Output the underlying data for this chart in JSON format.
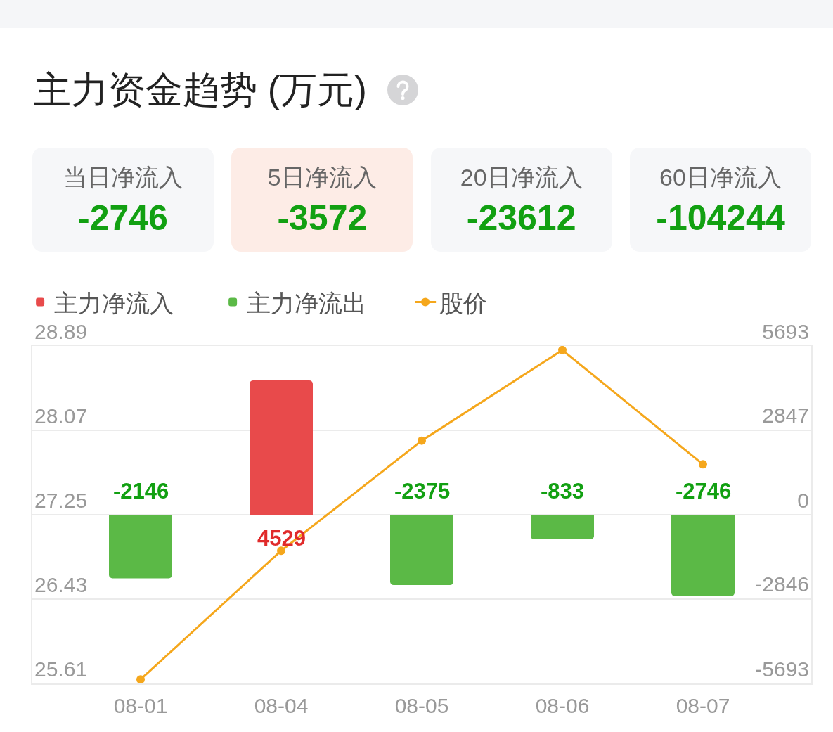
{
  "chart_data": [
    {
      "type": "other",
      "title": "主力资金趋势 (万元)",
      "categories": [
        "当日净流入",
        "5日净流入",
        "20日净流入",
        "60日净流入"
      ],
      "values": [
        -2746,
        -3572,
        -23612,
        -104244
      ],
      "colors": [
        "#f6f7f9",
        "#fdece6",
        "#f6f7f9",
        "#f6f7f9"
      ],
      "data_labels": true
    },
    {
      "type": "bar",
      "categories": [
        "08-01",
        "08-04",
        "08-05",
        "08-06",
        "08-07"
      ],
      "series": [
        {
          "name": "主力净流入",
          "type": "bar",
          "axis": "y2",
          "color": "#e84a4b",
          "values": [
            null,
            4529,
            null,
            null,
            null
          ],
          "value_labels": [
            null,
            "4529",
            null,
            null,
            null
          ]
        },
        {
          "name": "主力净流出",
          "type": "bar",
          "axis": "y2",
          "color": "#5bb946",
          "values": [
            -2146,
            null,
            -2375,
            -833,
            -2746
          ],
          "value_labels": [
            "-2146",
            null,
            "-2375",
            "-833",
            "-2746"
          ]
        },
        {
          "name": "股价",
          "type": "line",
          "color": "#f5a71c",
          "values": [
            25.65,
            26.9,
            27.97,
            28.85,
            27.74
          ]
        }
      ],
      "ylim": [
        25.61,
        28.89
      ],
      "yticks": [
        25.61,
        26.43,
        27.25,
        28.07,
        28.89
      ],
      "y2lim": [
        -5693,
        5693
      ],
      "y2ticks": [
        -5693,
        -2846,
        0,
        2847,
        5693
      ],
      "grid": "y",
      "legend": "top left",
      "marker": "circle",
      "line_style": "solid"
    }
  ]
}
